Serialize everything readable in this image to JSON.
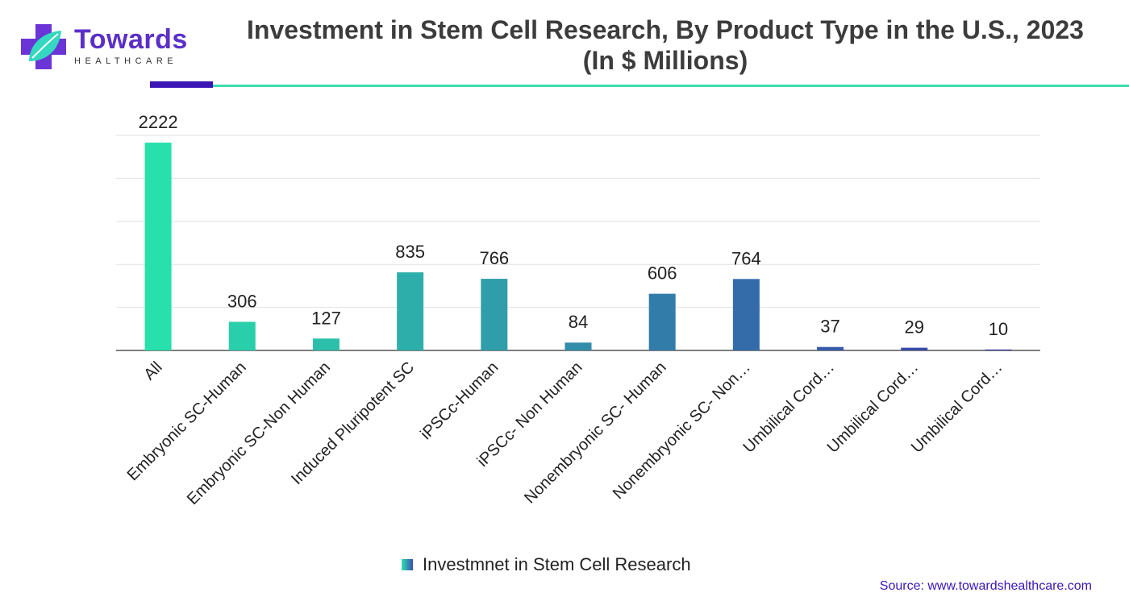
{
  "header": {
    "logo_name": "Towards",
    "logo_sub": "HEALTHCARE",
    "title": "Investment in Stem Cell Research, By Product Type in the U.S., 2023 (In $ Millions)"
  },
  "colors": {
    "brand_purple": "#5b2fc8",
    "accent_teal": "#3fdcb0",
    "bar_gradient_start": "#27e0ab",
    "bar_gradient_end": "#3a3aa8"
  },
  "chart_data": {
    "type": "bar",
    "title": "Investment in Stem Cell Research, By Product Type in the U.S., 2023 (In $ Millions)",
    "categories": [
      "All",
      "Embryonic SC-Human",
      "Embryonic SC-Non Human",
      "Induced Pluripotent SC",
      "iPSCc-Human",
      "iPSCc- Non Human",
      "Nonembryonic SC- Human",
      "Nonembryonic SC- Non…",
      "Umbilical Cord…",
      "Umbilical Cord…",
      "Umbilical Cord…"
    ],
    "series": [
      {
        "name": "Investmnet in Stem Cell Research",
        "values": [
          2222,
          306,
          127,
          835,
          766,
          84,
          606,
          764,
          37,
          29,
          10
        ]
      }
    ],
    "ylim": [
      0,
      2300
    ],
    "grid": true,
    "legend_position": "bottom"
  },
  "legend": {
    "label": "Investmnet in Stem Cell Research"
  },
  "footer": {
    "source": "Source: www.towardshealthcare.com"
  }
}
